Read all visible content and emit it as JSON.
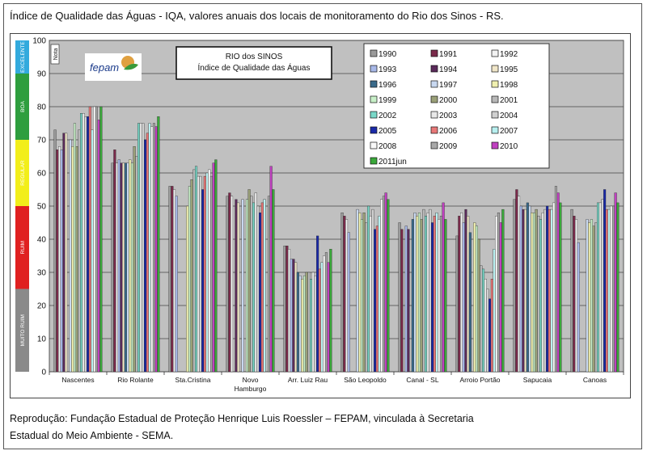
{
  "page": {
    "title": "Índice de Qualidade das Águas - IQA, valores anuais dos locais de monitoramento do Rio dos Sinos - RS.",
    "caption_line1": "Reprodução: Fundação Estadual de Proteção Henrique Luis Roessler – FEPAM, vinculada à Secretaria",
    "caption_line2": "Estadual do Meio Ambiente - SEMA."
  },
  "logo": {
    "text": "fepam"
  },
  "chart_data": {
    "type": "bar",
    "title_line1": "RIO dos SINOS",
    "title_line2": "Índice de Qualidade das Águas",
    "ylabel": "Nota",
    "ylim": [
      0,
      100
    ],
    "yticks": [
      0,
      10,
      20,
      30,
      40,
      50,
      60,
      70,
      80,
      90,
      100
    ],
    "grid": true,
    "legend_position": "top-right",
    "quality_bands": [
      {
        "label": "EXCELENTE",
        "from": 90,
        "to": 100,
        "color": "#33aadd"
      },
      {
        "label": "BOA",
        "from": 70,
        "to": 90,
        "color": "#2e9e3e"
      },
      {
        "label": "REGULAR",
        "from": 50,
        "to": 70,
        "color": "#f2ee1a"
      },
      {
        "label": "RUIM",
        "from": 25,
        "to": 50,
        "color": "#e02020"
      },
      {
        "label": "MUITO RUIM",
        "from": 0,
        "to": 25,
        "color": "#8a8a8a"
      }
    ],
    "categories": [
      "Nascentes",
      "Rio Rolante",
      "Sta.Cristina",
      "Novo Hamburgo",
      "Arr. Luiz Rau",
      "São Leopoldo",
      "Canal - SL",
      "Arroio Portão",
      "Sapucaia",
      "Canoas"
    ],
    "series": [
      {
        "name": "1990",
        "color": "#9a9a9a",
        "values": [
          73,
          63,
          56,
          53,
          38,
          48,
          45,
          41,
          52,
          49
        ]
      },
      {
        "name": "1991",
        "color": "#7a2a4a",
        "values": [
          67,
          67,
          56,
          54,
          38,
          47,
          43,
          47,
          55,
          47
        ]
      },
      {
        "name": "1992",
        "color": "#f2f2f2",
        "values": [
          68,
          63,
          55,
          53,
          37,
          46,
          0,
          48,
          53,
          46
        ]
      },
      {
        "name": "1993",
        "color": "#a8b8e8",
        "values": [
          67,
          64,
          53,
          0,
          34,
          42,
          44,
          45,
          50,
          39
        ]
      },
      {
        "name": "1994",
        "color": "#5a2a5a",
        "values": [
          72,
          63,
          0,
          52,
          34,
          0,
          43,
          49,
          49,
          0
        ]
      },
      {
        "name": "1995",
        "color": "#f0e6c8",
        "values": [
          72,
          63,
          0,
          51,
          33,
          0,
          0,
          47,
          49,
          0
        ]
      },
      {
        "name": "1996",
        "color": "#3a6a8a",
        "values": [
          0,
          63,
          0,
          0,
          30,
          0,
          46,
          42,
          51,
          0
        ]
      },
      {
        "name": "1997",
        "color": "#c8d8f0",
        "values": [
          70,
          63,
          0,
          52,
          29,
          49,
          48,
          0,
          50,
          46
        ]
      },
      {
        "name": "1998",
        "color": "#f0f0b0",
        "values": [
          68,
          64,
          50,
          0,
          28,
          48,
          47,
          45,
          48,
          45
        ]
      },
      {
        "name": "1999",
        "color": "#c8f0c8",
        "values": [
          75,
          63,
          56,
          52,
          29,
          46,
          48,
          44,
          48,
          46
        ]
      },
      {
        "name": "2000",
        "color": "#9aa078",
        "values": [
          68,
          68,
          58,
          55,
          30,
          48,
          46,
          40,
          49,
          44
        ]
      },
      {
        "name": "2001",
        "color": "#b8b8b8",
        "values": [
          73,
          65,
          61,
          53,
          30,
          45,
          49,
          32,
          47,
          45
        ]
      },
      {
        "name": "2002",
        "color": "#7ad8c8",
        "values": [
          78,
          75,
          62,
          51,
          28,
          50,
          47,
          31,
          46,
          51
        ]
      },
      {
        "name": "2003",
        "color": "#e8e8e8",
        "values": [
          78,
          75,
          59,
          54,
          30,
          47,
          48,
          28,
          48,
          51
        ]
      },
      {
        "name": "2004",
        "color": "#d0d0d0",
        "values": [
          77,
          75,
          59,
          50,
          29,
          49,
          49,
          25,
          49,
          52
        ]
      },
      {
        "name": "2005",
        "color": "#1a2aa8",
        "values": [
          77,
          70,
          55,
          48,
          41,
          43,
          45,
          22,
          50,
          55
        ]
      },
      {
        "name": "2006",
        "color": "#e87878",
        "values": [
          80,
          72,
          59,
          51,
          31,
          44,
          47,
          28,
          49,
          49
        ]
      },
      {
        "name": "2007",
        "color": "#b8f0f0",
        "values": [
          73,
          75,
          60,
          52,
          33,
          47,
          48,
          37,
          49,
          49
        ]
      },
      {
        "name": "2008",
        "color": "#f8f8f8",
        "values": [
          80,
          74,
          61,
          0,
          35,
          52,
          46,
          47,
          51,
          50
        ]
      },
      {
        "name": "2009",
        "color": "#a8a8a8",
        "values": [
          80,
          75,
          59,
          53,
          36,
          53,
          47,
          48,
          56,
          50
        ]
      },
      {
        "name": "2010",
        "color": "#c040c0",
        "values": [
          76,
          74,
          63,
          62,
          33,
          54,
          51,
          45,
          54,
          54
        ]
      },
      {
        "name": "2011jun",
        "color": "#3aa83a",
        "values": [
          80,
          77,
          64,
          55,
          37,
          52,
          46,
          49,
          51,
          51
        ]
      }
    ]
  }
}
